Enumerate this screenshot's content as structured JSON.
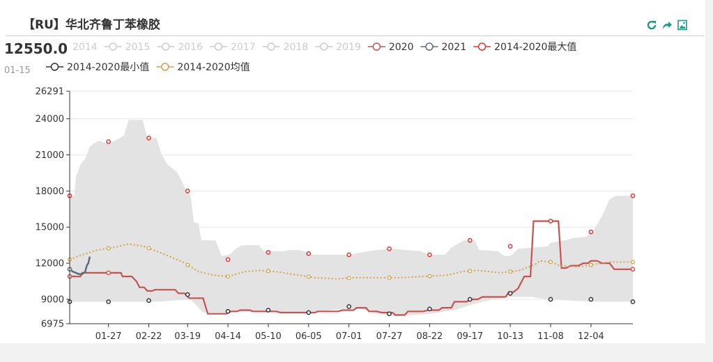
{
  "header": {
    "title": "【RU】华北齐鲁丁苯橡胶",
    "tools": [
      "refresh-icon",
      "share-icon",
      "save-image-icon"
    ]
  },
  "readout": {
    "value": "12550.0",
    "date": "01-15"
  },
  "colors": {
    "band": "#e3e3e3",
    "series2020": "#c9514f",
    "series2021": "#5b6b7b",
    "max": "#e8332f",
    "min": "#333333",
    "avg": "#d4a24a",
    "disabled": "#cccccc",
    "teal": "#1a9a8c"
  },
  "chart_data": {
    "type": "line",
    "title": "【RU】华北齐鲁丁苯橡胶",
    "xlabel": "",
    "ylabel": "",
    "ylim": [
      6975,
      26291
    ],
    "yticks": [
      "26291",
      "24000",
      "21000",
      "18000",
      "15000",
      "12000",
      "9000",
      "6975"
    ],
    "ytick_values": [
      26291,
      24000,
      21000,
      18000,
      15000,
      12000,
      9000,
      6975
    ],
    "xticks": [
      "01-27",
      "02-22",
      "03-19",
      "04-14",
      "05-10",
      "06-05",
      "07-01",
      "07-27",
      "08-22",
      "09-17",
      "10-13",
      "11-08",
      "12-04"
    ],
    "xtick_days": [
      27,
      53,
      78,
      104,
      130,
      156,
      182,
      208,
      234,
      260,
      286,
      312,
      338
    ],
    "x_domain_days": [
      2,
      365
    ],
    "grid": "horizontal",
    "legend_position": "top",
    "legend": [
      {
        "name": "2014",
        "active": false
      },
      {
        "name": "2015",
        "active": false
      },
      {
        "name": "2016",
        "active": false
      },
      {
        "name": "2017",
        "active": false
      },
      {
        "name": "2018",
        "active": false
      },
      {
        "name": "2019",
        "active": false
      },
      {
        "name": "2020",
        "active": true,
        "color": "#c9514f"
      },
      {
        "name": "2021",
        "active": true,
        "color": "#5b6b7b"
      },
      {
        "name": "2014-2020最大值",
        "active": true,
        "color": "#e8332f"
      },
      {
        "name": "2014-2020最小值",
        "active": true,
        "color": "#333333"
      },
      {
        "name": "2014-2020均值",
        "active": true,
        "color": "#d4a24a"
      }
    ],
    "band_upper": [
      [
        2,
        17600
      ],
      [
        5,
        17600
      ],
      [
        6,
        19200
      ],
      [
        9,
        20200
      ],
      [
        12,
        20700
      ],
      [
        15,
        21700
      ],
      [
        18,
        22000
      ],
      [
        21,
        22200
      ],
      [
        24,
        22000
      ],
      [
        27,
        22100
      ],
      [
        30,
        22100
      ],
      [
        33,
        22300
      ],
      [
        37,
        22600
      ],
      [
        40,
        23900
      ],
      [
        49,
        23900
      ],
      [
        52,
        22400
      ],
      [
        58,
        22400
      ],
      [
        61,
        21100
      ],
      [
        65,
        20200
      ],
      [
        71,
        19600
      ],
      [
        77,
        18100
      ],
      [
        80,
        17600
      ],
      [
        82,
        15400
      ],
      [
        85,
        15300
      ],
      [
        87,
        13900
      ],
      [
        96,
        13900
      ],
      [
        100,
        12600
      ],
      [
        105,
        12700
      ],
      [
        109,
        13200
      ],
      [
        113,
        13500
      ],
      [
        124,
        13500
      ],
      [
        127,
        13000
      ],
      [
        141,
        13000
      ],
      [
        143,
        13100
      ],
      [
        150,
        13100
      ],
      [
        155,
        12900
      ],
      [
        160,
        12700
      ],
      [
        178,
        12700
      ],
      [
        182,
        12700
      ],
      [
        190,
        12900
      ],
      [
        200,
        13100
      ],
      [
        210,
        13200
      ],
      [
        228,
        13000
      ],
      [
        234,
        12700
      ],
      [
        244,
        12700
      ],
      [
        248,
        13300
      ],
      [
        256,
        13900
      ],
      [
        263,
        13900
      ],
      [
        266,
        13100
      ],
      [
        278,
        13000
      ],
      [
        282,
        12600
      ],
      [
        286,
        12600
      ],
      [
        291,
        13200
      ],
      [
        301,
        13300
      ],
      [
        310,
        13400
      ],
      [
        312,
        13700
      ],
      [
        321,
        13900
      ],
      [
        327,
        14100
      ],
      [
        335,
        14200
      ],
      [
        338,
        14600
      ],
      [
        340,
        14800
      ],
      [
        345,
        15900
      ],
      [
        350,
        17300
      ],
      [
        354,
        17600
      ],
      [
        365,
        17600
      ]
    ],
    "band_lower": [
      [
        2,
        8800
      ],
      [
        60,
        8800
      ],
      [
        80,
        9000
      ],
      [
        88,
        7900
      ],
      [
        105,
        7900
      ],
      [
        108,
        8000
      ],
      [
        130,
        8000
      ],
      [
        150,
        7900
      ],
      [
        170,
        8100
      ],
      [
        180,
        8200
      ],
      [
        190,
        8200
      ],
      [
        200,
        7800
      ],
      [
        212,
        7600
      ],
      [
        234,
        7800
      ],
      [
        250,
        8100
      ],
      [
        262,
        8600
      ],
      [
        275,
        9000
      ],
      [
        286,
        9200
      ],
      [
        300,
        9200
      ],
      [
        310,
        9000
      ],
      [
        325,
        8900
      ],
      [
        340,
        8800
      ],
      [
        365,
        8800
      ]
    ],
    "max_markers": [
      [
        2,
        17600
      ],
      [
        27,
        22100
      ],
      [
        53,
        22400
      ],
      [
        78,
        18000
      ],
      [
        104,
        12300
      ],
      [
        130,
        12900
      ],
      [
        156,
        12800
      ],
      [
        182,
        12700
      ],
      [
        208,
        13200
      ],
      [
        234,
        12700
      ],
      [
        260,
        13900
      ],
      [
        286,
        13400
      ],
      [
        312,
        15500
      ],
      [
        338,
        14600
      ],
      [
        365,
        17600
      ]
    ],
    "min_markers": [
      [
        2,
        8800
      ],
      [
        27,
        8800
      ],
      [
        53,
        8900
      ],
      [
        78,
        9400
      ],
      [
        104,
        8000
      ],
      [
        130,
        8100
      ],
      [
        156,
        7900
      ],
      [
        182,
        8400
      ],
      [
        208,
        7800
      ],
      [
        234,
        8200
      ],
      [
        260,
        9000
      ],
      [
        286,
        9500
      ],
      [
        312,
        9000
      ],
      [
        338,
        9000
      ],
      [
        365,
        8800
      ]
    ],
    "series": [
      {
        "name": "2020",
        "color": "#c9514f",
        "values": [
          [
            2,
            10900
          ],
          [
            9,
            10900
          ],
          [
            10,
            11200
          ],
          [
            35,
            11200
          ],
          [
            36,
            10900
          ],
          [
            42,
            10900
          ],
          [
            45,
            10500
          ],
          [
            47,
            10000
          ],
          [
            50,
            10000
          ],
          [
            52,
            9700
          ],
          [
            55,
            9700
          ],
          [
            57,
            9800
          ],
          [
            70,
            9800
          ],
          [
            72,
            9500
          ],
          [
            76,
            9500
          ],
          [
            79,
            9100
          ],
          [
            88,
            9100
          ],
          [
            91,
            7800
          ],
          [
            103,
            7800
          ],
          [
            106,
            8000
          ],
          [
            110,
            8000
          ],
          [
            112,
            8100
          ],
          [
            118,
            8100
          ],
          [
            120,
            8000
          ],
          [
            135,
            8000
          ],
          [
            138,
            7900
          ],
          [
            160,
            7900
          ],
          [
            162,
            8000
          ],
          [
            175,
            8000
          ],
          [
            178,
            8100
          ],
          [
            185,
            8100
          ],
          [
            187,
            8300
          ],
          [
            193,
            8300
          ],
          [
            195,
            8000
          ],
          [
            200,
            8000
          ],
          [
            203,
            7900
          ],
          [
            210,
            7900
          ],
          [
            212,
            7700
          ],
          [
            218,
            7700
          ],
          [
            220,
            8000
          ],
          [
            230,
            8000
          ],
          [
            233,
            8100
          ],
          [
            240,
            8100
          ],
          [
            242,
            8300
          ],
          [
            248,
            8300
          ],
          [
            250,
            8800
          ],
          [
            258,
            8800
          ],
          [
            260,
            9000
          ],
          [
            265,
            9000
          ],
          [
            268,
            9200
          ],
          [
            283,
            9200
          ],
          [
            285,
            9600
          ],
          [
            288,
            9600
          ],
          [
            291,
            9900
          ],
          [
            295,
            10900
          ],
          [
            299,
            10900
          ],
          [
            301,
            15500
          ],
          [
            317,
            15500
          ],
          [
            319,
            11600
          ],
          [
            322,
            11600
          ],
          [
            325,
            11800
          ],
          [
            330,
            11800
          ],
          [
            333,
            12000
          ],
          [
            336,
            12000
          ],
          [
            338,
            12200
          ],
          [
            342,
            12200
          ],
          [
            345,
            12000
          ],
          [
            350,
            12000
          ],
          [
            353,
            11500
          ],
          [
            365,
            11500
          ]
        ]
      },
      {
        "name": "2021",
        "color": "#5b6b7b",
        "values": [
          [
            2,
            11500
          ],
          [
            4,
            11300
          ],
          [
            6,
            11200
          ],
          [
            8,
            11100
          ],
          [
            10,
            11100
          ],
          [
            12,
            11300
          ],
          [
            13,
            11800
          ],
          [
            14,
            12000
          ],
          [
            15,
            12550
          ]
        ]
      },
      {
        "name": "2014-2020均值",
        "color": "#d4a24a",
        "values": [
          [
            2,
            12300
          ],
          [
            10,
            12700
          ],
          [
            20,
            13100
          ],
          [
            30,
            13300
          ],
          [
            40,
            13600
          ],
          [
            50,
            13400
          ],
          [
            60,
            12900
          ],
          [
            75,
            12100
          ],
          [
            85,
            11300
          ],
          [
            95,
            11000
          ],
          [
            104,
            10900
          ],
          [
            115,
            11300
          ],
          [
            125,
            11400
          ],
          [
            135,
            11300
          ],
          [
            145,
            11100
          ],
          [
            160,
            10800
          ],
          [
            175,
            10700
          ],
          [
            185,
            10800
          ],
          [
            200,
            10800
          ],
          [
            215,
            10800
          ],
          [
            230,
            10900
          ],
          [
            245,
            11000
          ],
          [
            255,
            11300
          ],
          [
            265,
            11400
          ],
          [
            280,
            11200
          ],
          [
            292,
            11400
          ],
          [
            302,
            11900
          ],
          [
            305,
            12200
          ],
          [
            312,
            12100
          ],
          [
            318,
            11800
          ],
          [
            330,
            11700
          ],
          [
            340,
            11900
          ],
          [
            350,
            12100
          ],
          [
            365,
            12100
          ]
        ]
      }
    ]
  }
}
